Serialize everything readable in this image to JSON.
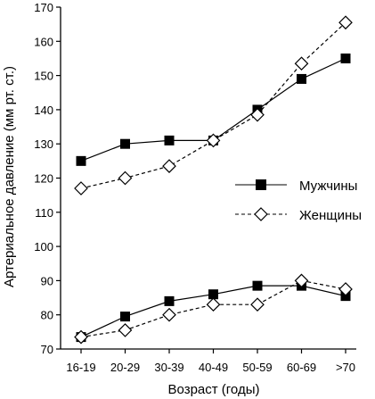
{
  "chart_data": {
    "type": "line",
    "title": "",
    "xlabel": "Возраст (годы)",
    "ylabel": "Артериальное давление (мм рт. ст.)",
    "categories": [
      "16-19",
      "20-29",
      "30-39",
      "40-49",
      "50-59",
      "60-69",
      ">70"
    ],
    "ylim": [
      70,
      170
    ],
    "yticks": [
      70,
      80,
      90,
      100,
      110,
      120,
      130,
      140,
      150,
      160,
      170
    ],
    "grid": false,
    "legend_position": "right",
    "series": [
      {
        "name": "Мужчины",
        "group": "systolic",
        "marker": "filled-square",
        "line": "solid",
        "values": [
          125,
          130,
          131,
          131,
          140,
          149,
          155
        ]
      },
      {
        "name": "Женщины",
        "group": "systolic",
        "marker": "open-diamond",
        "line": "dashed",
        "values": [
          117,
          120,
          123.5,
          131,
          138.5,
          153.5,
          165.5
        ]
      },
      {
        "name": "Мужчины",
        "group": "diastolic",
        "marker": "filled-square",
        "line": "solid",
        "values": [
          73.5,
          79.5,
          84,
          86,
          88.5,
          88.5,
          85.5
        ]
      },
      {
        "name": "Женщины",
        "group": "diastolic",
        "marker": "open-diamond",
        "line": "dashed",
        "values": [
          73.5,
          75.5,
          80,
          83,
          83,
          90,
          87.5
        ]
      }
    ],
    "legend": [
      {
        "label": "Мужчины",
        "marker": "filled-square",
        "line": "solid"
      },
      {
        "label": "Женщины",
        "marker": "open-diamond",
        "line": "dashed"
      }
    ]
  }
}
